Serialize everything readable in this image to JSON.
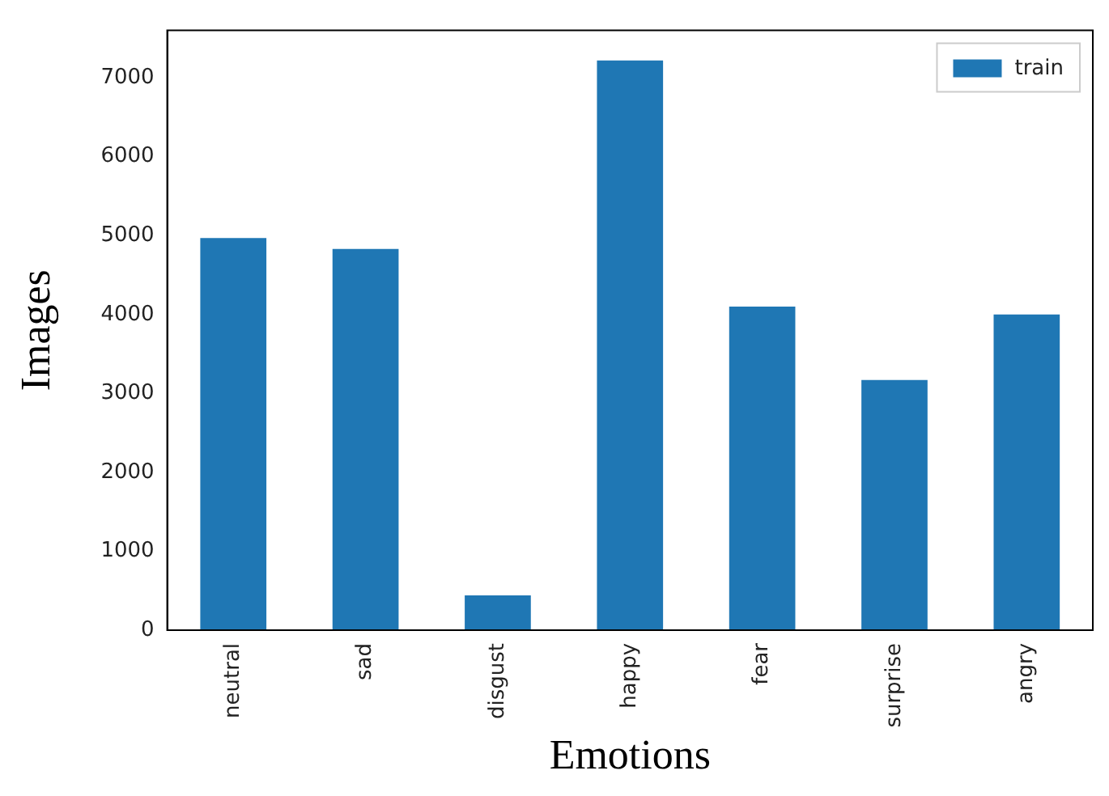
{
  "chart_data": {
    "type": "bar",
    "xlabel": "Emotions",
    "ylabel": "Images",
    "categories": [
      "neutral",
      "sad",
      "disgust",
      "happy",
      "fear",
      "surprise",
      "angry"
    ],
    "series": [
      {
        "name": "train",
        "color": "#1f77b4",
        "values": [
          4970,
          4830,
          440,
          7220,
          4100,
          3170,
          4000
        ]
      }
    ],
    "ylim": [
      0,
      7600
    ],
    "yticks": [
      0,
      1000,
      2000,
      3000,
      4000,
      5000,
      6000,
      7000
    ],
    "grid": false,
    "legend": "top right"
  }
}
